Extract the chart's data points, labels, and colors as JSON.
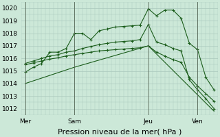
{
  "background_color": "#cce8d8",
  "grid_color": "#aac8bc",
  "line_color": "#1a5c1a",
  "marker_color": "#1a5c1a",
  "xlabel": "Pression niveau de la mer( hPa )",
  "ylim": [
    1011.5,
    1020.5
  ],
  "yticks": [
    1012,
    1013,
    1014,
    1015,
    1016,
    1017,
    1018,
    1019,
    1020
  ],
  "xtick_labels": [
    "Mer",
    "Sam",
    "Jeu",
    "Ven"
  ],
  "xtick_positions": [
    0,
    12,
    30,
    42
  ],
  "vline_positions": [
    0,
    12,
    30,
    42
  ],
  "xlim": [
    -1,
    47
  ],
  "series": [
    {
      "x": [
        0,
        2,
        4,
        6,
        8,
        10,
        12,
        14,
        16,
        18,
        20,
        22,
        24,
        26,
        28,
        30,
        32,
        34,
        36,
        38,
        40,
        42,
        44,
        46
      ],
      "y": [
        1014.9,
        1015.3,
        1015.6,
        1016.5,
        1016.5,
        1016.8,
        1018.0,
        1018.0,
        1017.5,
        1018.2,
        1018.35,
        1018.5,
        1018.55,
        1018.6,
        1018.65,
        1019.95,
        1019.4,
        1019.85,
        1019.85,
        1019.2,
        1017.2,
        1016.7,
        1014.5,
        1013.5
      ]
    },
    {
      "x": [
        0,
        2,
        4,
        6,
        8,
        10,
        12,
        14,
        16,
        18,
        20,
        22,
        24,
        26,
        28,
        30,
        32,
        34,
        36,
        38,
        40,
        42,
        44,
        46
      ],
      "y": [
        1015.6,
        1015.8,
        1016.0,
        1016.2,
        1016.3,
        1016.5,
        1016.6,
        1016.8,
        1016.95,
        1017.1,
        1017.2,
        1017.3,
        1017.35,
        1017.4,
        1017.5,
        1018.7,
        1017.3,
        1017.1,
        1016.8,
        1016.6,
        1014.3,
        1013.5,
        1012.8,
        1012.0
      ]
    },
    {
      "x": [
        0,
        2,
        4,
        6,
        8,
        10,
        12,
        14,
        16,
        18,
        20,
        22,
        24,
        26,
        28,
        30,
        32,
        34,
        36,
        38,
        40,
        42,
        44,
        46
      ],
      "y": [
        1015.5,
        1015.65,
        1015.8,
        1015.95,
        1016.05,
        1016.2,
        1016.3,
        1016.4,
        1016.5,
        1016.6,
        1016.65,
        1016.7,
        1016.75,
        1016.8,
        1016.85,
        1017.0,
        1016.5,
        1016.2,
        1015.9,
        1015.7,
        1014.5,
        1013.8,
        1013.2,
        1012.6
      ]
    },
    {
      "x": [
        0,
        12,
        30,
        46
      ],
      "y": [
        1014.0,
        1015.3,
        1017.0,
        1011.8
      ]
    }
  ],
  "series_with_markers": [
    0,
    1,
    2
  ],
  "no_marker_series": [
    3
  ],
  "marker_every": 4,
  "ylabel_fontsize": 6.5,
  "xlabel_fontsize": 8,
  "tick_fontsize": 6.5
}
